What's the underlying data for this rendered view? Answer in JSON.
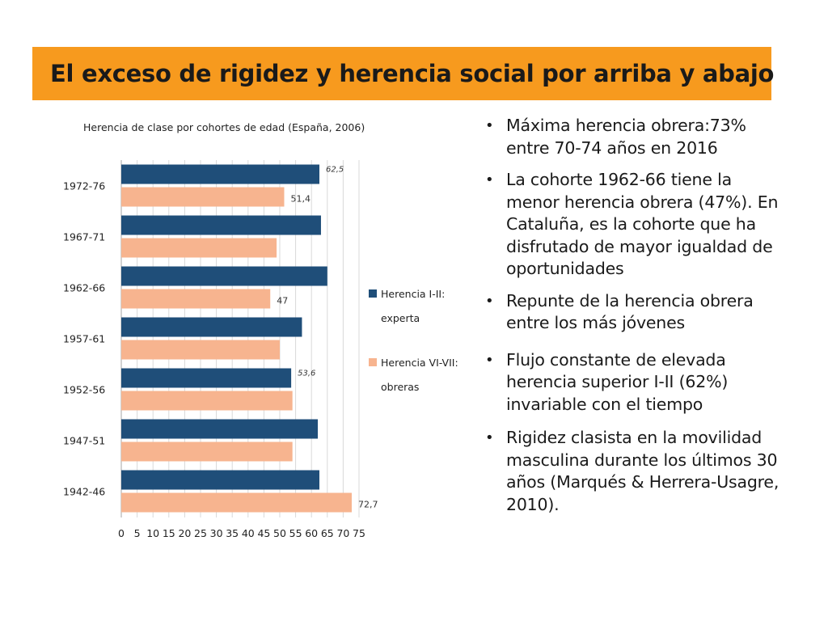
{
  "slide": {
    "title": "El exceso de rigidez y herencia social por arriba y abajo",
    "bullets": [
      "Máxima herencia obrera:73% entre 70-74 años en 2016",
      "La cohorte 1962-66 tiene la menor herencia obrera (47%). En Cataluña, es la cohorte que ha disfrutado de mayor igualdad de oportunidades",
      "Repunte de la herencia obrera entre los más jóvenes",
      "Flujo constante de elevada herencia superior I-II (62%) invariable con el tiempo",
      "Rigidez clasista en la movilidad masculina durante los últimos 30 años (Marqués & Herrera-Usagre, 2010)."
    ]
  },
  "chart_data": {
    "type": "bar",
    "orientation": "horizontal",
    "title": "Herencia de clase por cohortes de edad (España, 2006)",
    "categories": [
      "1972-76",
      "1967-71",
      "1962-66",
      "1957-61",
      "1952-56",
      "1947-51",
      "1942-46"
    ],
    "series": [
      {
        "name": "Herencia I-II: experta",
        "color": "#1f4e79",
        "values": [
          62.5,
          63,
          65,
          57,
          53.6,
          62,
          62.5
        ],
        "labels": [
          "62,5",
          "",
          "",
          "",
          "53,6",
          "",
          ""
        ]
      },
      {
        "name": "Herencia VI-VII: obreras",
        "color": "#f7b48f",
        "values": [
          51.4,
          49,
          47,
          50,
          54,
          54,
          72.7
        ],
        "labels": [
          "51,4",
          "",
          "47",
          "",
          "",
          "",
          "72,7"
        ]
      }
    ],
    "xlim": [
      0,
      75
    ],
    "xticks": [
      0,
      5,
      10,
      15,
      20,
      25,
      30,
      35,
      40,
      45,
      50,
      55,
      60,
      65,
      70,
      75
    ],
    "grid": true,
    "legend_position": "right",
    "legend": {
      "entries": [
        {
          "lines": [
            "Herencia I-II:",
            "experta"
          ],
          "color": "#1f4e79"
        },
        {
          "lines": [
            "Herencia VI-VII:",
            "obreras"
          ],
          "color": "#f7b48f"
        }
      ]
    }
  }
}
